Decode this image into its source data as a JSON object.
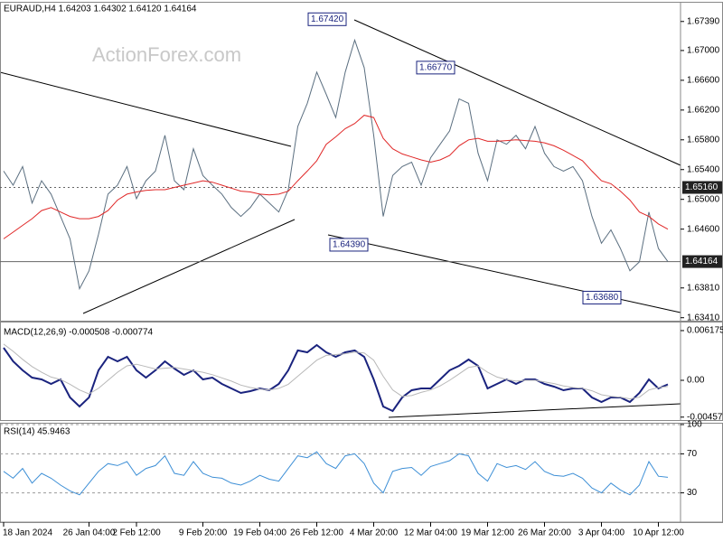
{
  "chart_data": [
    {
      "type": "line",
      "title": "EURAUD,H4  1.64203 1.64302 1.64120 1.64164",
      "watermark": "ActionForex.com",
      "categories": [
        "18 Jan 2024",
        null,
        null,
        null,
        null,
        null,
        null,
        null,
        null,
        "26 Jan 04:00",
        null,
        null,
        null,
        null,
        "2 Feb 12:00",
        null,
        null,
        null,
        null,
        null,
        null,
        "9 Feb 20:00",
        null,
        null,
        null,
        null,
        null,
        "19 Feb 04:00",
        null,
        null,
        null,
        null,
        null,
        "26 Feb 12:00",
        null,
        null,
        null,
        null,
        null,
        "4 Mar 20:00",
        null,
        null,
        null,
        null,
        null,
        "12 Mar 04:00",
        null,
        null,
        null,
        null,
        null,
        "19 Mar 12:00",
        null,
        null,
        null,
        null,
        null,
        "26 Mar 20:00",
        null,
        null,
        null,
        null,
        null,
        "3 Apr 04:00",
        null,
        null,
        null,
        null,
        null,
        "10 Apr 12:00",
        null
      ],
      "series": [
        {
          "color": "#5b6f80",
          "values": [
            1.6538,
            1.6519,
            1.6544,
            1.6495,
            1.6525,
            1.6507,
            1.6477,
            1.6447,
            1.638,
            1.6404,
            1.6453,
            1.6507,
            1.6519,
            1.6544,
            1.6501,
            1.6525,
            1.6538,
            1.6586,
            1.6525,
            1.6513,
            1.6568,
            1.6532,
            1.6519,
            1.6507,
            1.6489,
            1.6477,
            1.6489,
            1.6507,
            1.6495,
            1.6483,
            1.6513,
            1.6598,
            1.6629,
            1.6671,
            1.6641,
            1.661,
            1.6671,
            1.6714,
            1.6677,
            1.6586,
            1.6477,
            1.6532,
            1.6544,
            1.655,
            1.6519,
            1.6556,
            1.6574,
            1.6592,
            1.6635,
            1.6629,
            1.6562,
            1.6525,
            1.658,
            1.6574,
            1.6586,
            1.6568,
            1.6598,
            1.6562,
            1.6544,
            1.6538,
            1.6544,
            1.6525,
            1.6477,
            1.6441,
            1.6459,
            1.6434,
            1.6404,
            1.6416,
            1.6483,
            1.6434,
            1.64164
          ]
        },
        {
          "color": "#e02828",
          "values": [
            1.6447,
            1.6456,
            1.6465,
            1.6474,
            1.6485,
            1.6489,
            1.6483,
            1.6477,
            1.6474,
            1.6474,
            1.6477,
            1.6485,
            1.6499,
            1.6507,
            1.651,
            1.6512,
            1.6513,
            1.6513,
            1.6516,
            1.6519,
            1.6522,
            1.6525,
            1.6523,
            1.6519,
            1.6515,
            1.6511,
            1.651,
            1.6507,
            1.6506,
            1.6507,
            1.6511,
            1.6525,
            1.6538,
            1.6552,
            1.6574,
            1.6584,
            1.6595,
            1.6602,
            1.6613,
            1.661,
            1.6582,
            1.6568,
            1.6561,
            1.6557,
            1.6553,
            1.655,
            1.6553,
            1.6559,
            1.6572,
            1.658,
            1.6582,
            1.6578,
            1.6578,
            1.6579,
            1.658,
            1.6579,
            1.6578,
            1.6576,
            1.6572,
            1.6566,
            1.6559,
            1.6552,
            1.6538,
            1.6525,
            1.6521,
            1.6511,
            1.6499,
            1.6483,
            1.6477,
            1.6467,
            1.646
          ]
        }
      ],
      "ylim": [
        1.6337,
        1.6763
      ],
      "yticks": [
        {
          "value": 1.6739,
          "label": "1.67390"
        },
        {
          "value": 1.67,
          "label": "1.67000"
        },
        {
          "value": 1.666,
          "label": "1.66600"
        },
        {
          "value": 1.662,
          "label": "1.66200"
        },
        {
          "value": 1.658,
          "label": "1.65800"
        },
        {
          "value": 1.654,
          "label": "1.65400"
        },
        {
          "value": 1.65,
          "label": "1.65000"
        },
        {
          "value": 1.646,
          "label": "1.64600"
        },
        {
          "value": 1.6381,
          "label": "1.63810"
        },
        {
          "value": 1.6341,
          "label": "1.63410"
        }
      ],
      "grid": false,
      "hlines": [
        {
          "value": 1.6516,
          "label": "1.65160",
          "style": "dotted"
        },
        {
          "value": 1.64164,
          "label": "1.64164",
          "style": "solid"
        }
      ],
      "annotations": [
        {
          "value": 1.6742,
          "label": "1.67420"
        },
        {
          "value": 1.6677,
          "label": "1.66770"
        },
        {
          "value": 1.6439,
          "label": "1.64390"
        },
        {
          "value": 1.6368,
          "label": "1.63680"
        }
      ]
    },
    {
      "type": "line",
      "title": "MACD(12,26,9) -0.000508 -0.000774",
      "series": [
        {
          "color": "#1a237e",
          "values": [
            0.00404,
            0.00236,
            0.00124,
            0.00034,
            0.00011,
            -0.00045,
            0.00011,
            -0.00213,
            -0.00326,
            -0.00213,
            0.00124,
            0.00292,
            0.00236,
            0.00292,
            0.00124,
            0.00034,
            0.00124,
            0.00236,
            0.00146,
            0.00067,
            0.00124,
            0.00011,
            0.00034,
            -0.00045,
            -0.00101,
            -0.00157,
            -0.00135,
            -0.00101,
            -0.00124,
            -0.00045,
            0.00124,
            0.00371,
            0.00348,
            0.00438,
            0.00348,
            0.00292,
            0.00348,
            0.00371,
            0.00292,
            0.00011,
            -0.00326,
            -0.00382,
            -0.00213,
            -0.00124,
            -0.00101,
            -0.00101,
            0.00011,
            0.00124,
            0.0018,
            0.00258,
            0.0018,
            -0.00101,
            -0.00045,
            0.00011,
            -0.00045,
            0.00011,
            0.00011,
            -0.00045,
            -0.00079,
            -0.00124,
            -0.00101,
            -0.00101,
            -0.00213,
            -0.0027,
            -0.00213,
            -0.00213,
            -0.0027,
            -0.00157,
            0.00011,
            -0.00101,
            -0.000508
          ]
        },
        {
          "color": "#b8b8b8",
          "values": [
            0.0045,
            0.0036,
            0.0026,
            0.0017,
            0.001,
            0.0004,
            0.0001,
            -0.0005,
            -0.0012,
            -0.0017,
            -0.001,
            0.0,
            0.001,
            0.0018,
            0.002,
            0.0017,
            0.0014,
            0.0015,
            0.0016,
            0.0014,
            0.0012,
            0.001,
            0.0007,
            0.0003,
            -0.0001,
            -0.0006,
            -0.0009,
            -0.0011,
            -0.0012,
            -0.001,
            -0.0005,
            0.0005,
            0.0015,
            0.0025,
            0.0031,
            0.0032,
            0.0033,
            0.0035,
            0.0034,
            0.0025,
            0.0005,
            -0.0012,
            -0.002,
            -0.0019,
            -0.0015,
            -0.0012,
            -0.0007,
            0.0,
            0.0008,
            0.0016,
            0.0018,
            0.001,
            0.0004,
            0.0001,
            -0.0001,
            0.0,
            0.0,
            -0.0002,
            -0.0004,
            -0.0007,
            -0.0009,
            -0.001,
            -0.0013,
            -0.0018,
            -0.002,
            -0.0021,
            -0.0023,
            -0.0021,
            -0.0012,
            -0.0009,
            -0.000774
          ]
        }
      ],
      "ylim": [
        -0.00494,
        0.00707
      ],
      "yticks": [
        0.006175,
        {
          "value": 0,
          "label": "0.00"
        },
        -0.004576
      ],
      "grid": false
    },
    {
      "type": "line",
      "title": "RSI(14) 45.9463",
      "series": [
        {
          "color": "#3d8fd6",
          "values": [
            52,
            45,
            55,
            40,
            50,
            45,
            38,
            32,
            28,
            40,
            52,
            60,
            58,
            62,
            48,
            55,
            58,
            68,
            50,
            48,
            62,
            50,
            46,
            45,
            40,
            38,
            42,
            48,
            44,
            42,
            55,
            68,
            66,
            72,
            60,
            55,
            68,
            70,
            60,
            40,
            30,
            52,
            55,
            56,
            48,
            57,
            60,
            63,
            70,
            68,
            50,
            42,
            60,
            56,
            58,
            54,
            62,
            52,
            48,
            47,
            50,
            45,
            35,
            30,
            40,
            33,
            28,
            38,
            62,
            47,
            45.9463
          ]
        }
      ],
      "ylim": [
        0,
        100
      ],
      "yticks": [
        100,
        70,
        30
      ],
      "grid": true
    }
  ]
}
